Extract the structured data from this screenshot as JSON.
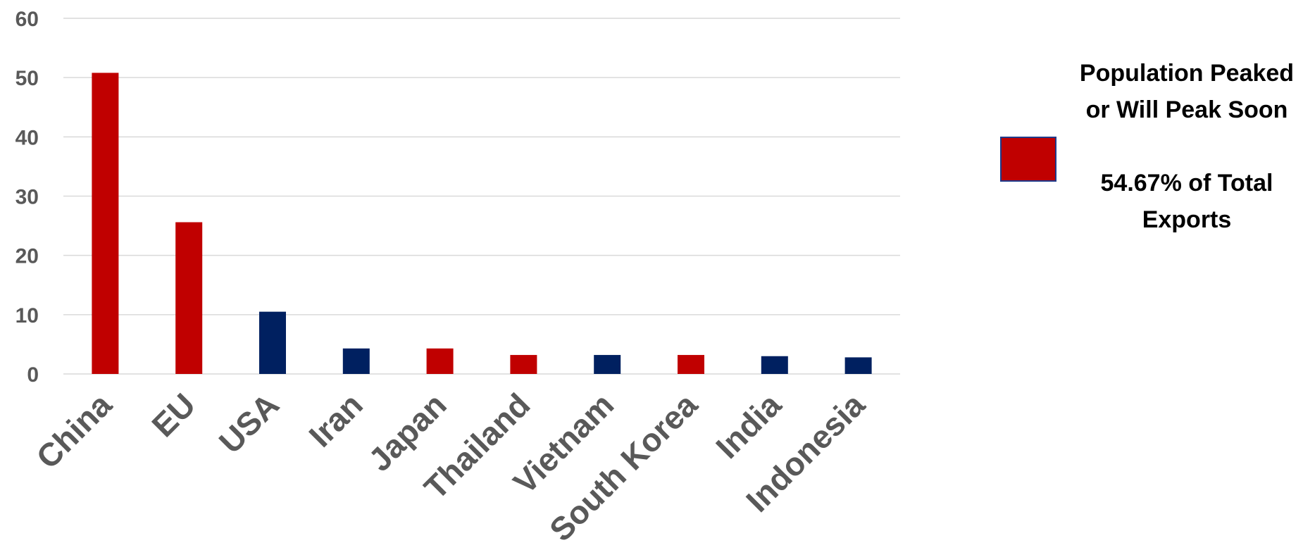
{
  "colors": {
    "red": "#c00000",
    "navy": "#002060",
    "grid": "#d9d9d9",
    "tick_text": "#595959"
  },
  "legend": {
    "swatch_color": "#c00000",
    "label": "Population Peaked or Will Peak Soon",
    "note": "54.67% of Total Exports"
  },
  "chart_data": {
    "type": "bar",
    "categories": [
      "China",
      "EU",
      "USA",
      "Iran",
      "Japan",
      "Thailand",
      "Vietnam",
      "South Korea",
      "India",
      "Indonesia"
    ],
    "values": [
      50.8,
      25.6,
      10.5,
      4.3,
      4.3,
      3.2,
      3.2,
      3.2,
      3.0,
      2.8
    ],
    "bar_colors": [
      "red",
      "red",
      "navy",
      "navy",
      "red",
      "red",
      "navy",
      "red",
      "navy",
      "navy"
    ],
    "ylim": [
      0,
      60
    ],
    "yticks": [
      0,
      10,
      20,
      30,
      40,
      50,
      60
    ],
    "grid": true,
    "legend_position": "right"
  }
}
